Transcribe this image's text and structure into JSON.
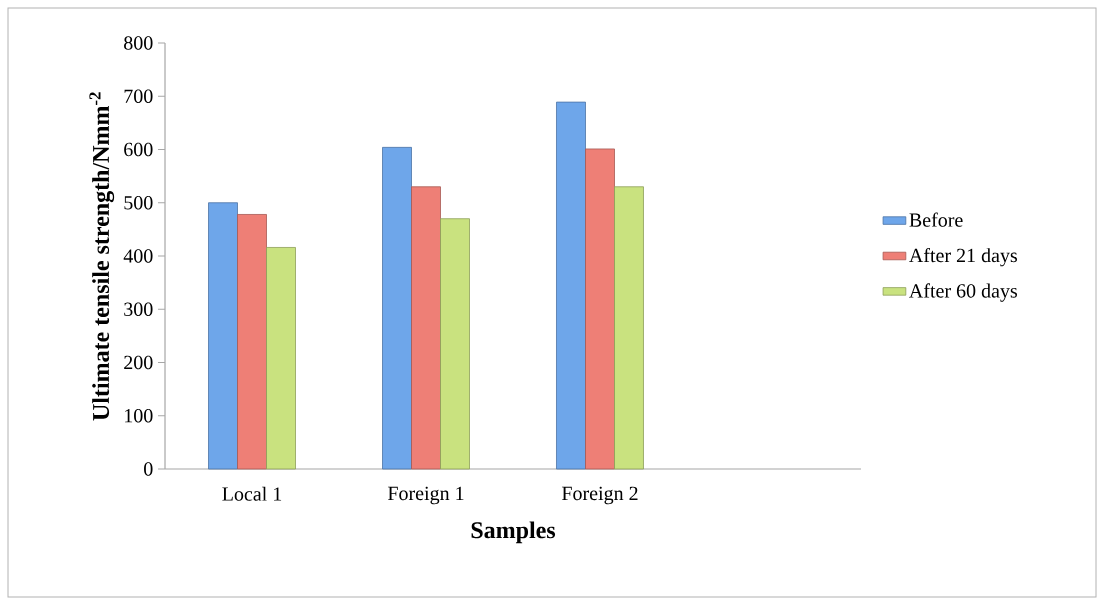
{
  "chart_data": {
    "type": "bar",
    "xlabel": "Samples",
    "ylabel": "Ultimate tensile strength/Nmm$^{-2}$",
    "categories": [
      "Local 1",
      "Foreign 1",
      "Foreign 2",
      null
    ],
    "series": [
      {
        "name": "Before",
        "color": "#6ea6ea",
        "values": [
          500,
          604,
          689,
          null
        ]
      },
      {
        "name": "After 21 days",
        "color": "#ee7f76",
        "values": [
          478,
          530,
          601,
          null
        ]
      },
      {
        "name": "After 60 days",
        "color": "#c9e27f",
        "values": [
          416,
          470,
          530,
          null
        ]
      }
    ],
    "ylim": [
      0,
      800
    ],
    "yticks": [
      0,
      100,
      200,
      300,
      400,
      500,
      600,
      700,
      800
    ],
    "legend": "right"
  }
}
